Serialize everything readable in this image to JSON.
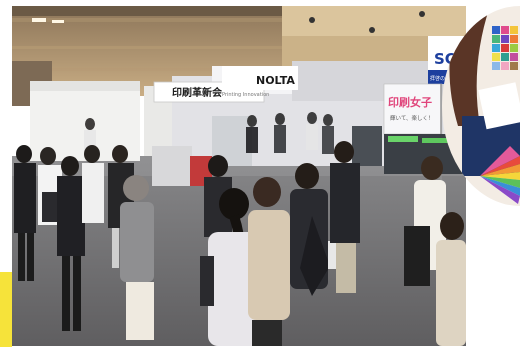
{
  "scene": {
    "banner_main": "印刷革新会",
    "banner_main_sub": "Printing Innovation",
    "banner_brand": "NOLTA",
    "sign_right": "印刷女子",
    "sign_right_sub": "輝いて、楽しく！",
    "sign_brand": "SC",
    "sign_brand_sub": "拝啓のカラマ"
  },
  "colors": {
    "accent_yellow": "#f6e33a",
    "floor": "#6f6e70",
    "ceiling": "#c9ad84"
  }
}
